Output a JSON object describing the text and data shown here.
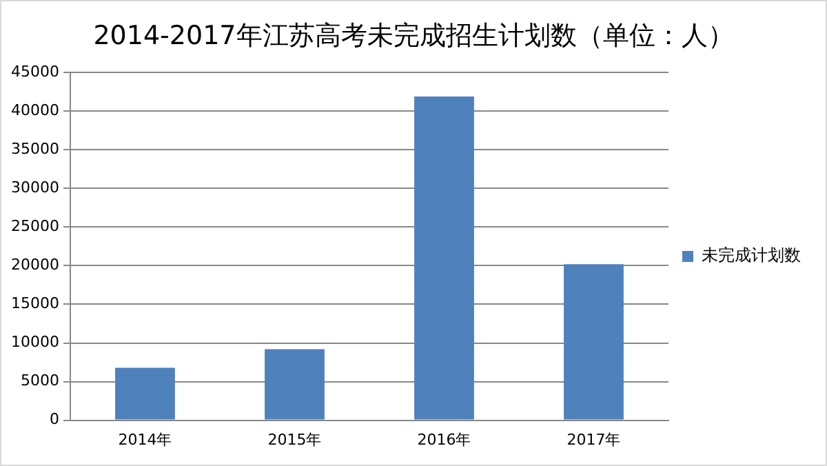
{
  "chart_data": {
    "type": "bar",
    "title": "2014-2017年江苏高考未完成招生计划数（单位：人）",
    "categories": [
      "2014年",
      "2015年",
      "2016年",
      "2017年"
    ],
    "series": [
      {
        "name": "未完成计划数",
        "color": "#4f81bd",
        "values": [
          6800,
          9200,
          41900,
          20200
        ]
      }
    ],
    "ylim": [
      0,
      45000
    ],
    "yticks": [
      0,
      5000,
      10000,
      15000,
      20000,
      25000,
      30000,
      35000,
      40000,
      45000
    ],
    "grid": "y",
    "legend": "right"
  }
}
